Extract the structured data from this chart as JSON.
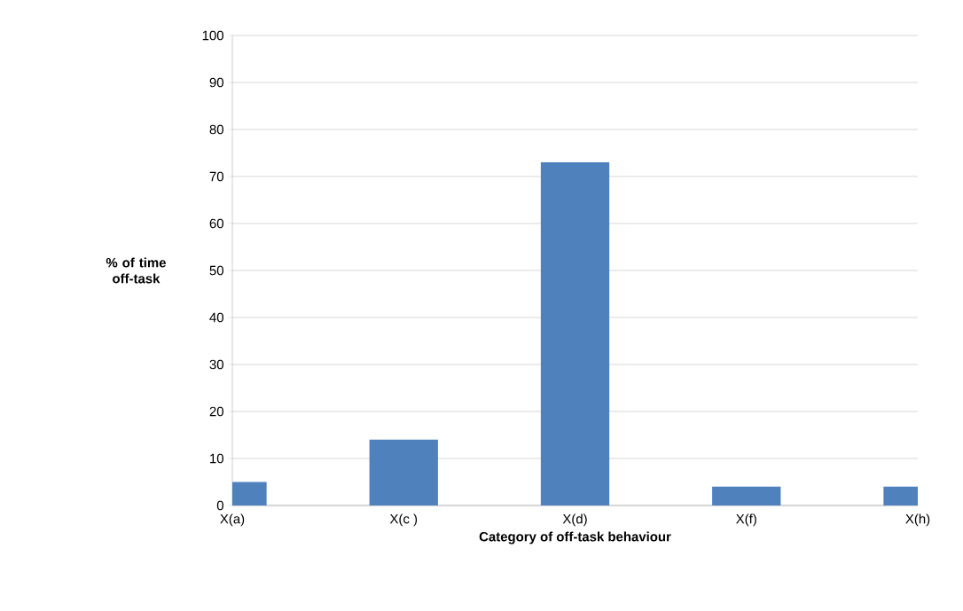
{
  "chart_data": {
    "type": "bar",
    "xlabel": "Category of off-task behaviour",
    "ylabel": "% of time off-task",
    "categories": [
      "X(a)",
      "X(c )",
      "X(d)",
      "X(f)",
      "X(h)"
    ],
    "values": [
      5,
      14,
      73,
      4,
      4
    ],
    "color": "#4f81bd",
    "ylim": [
      0,
      100
    ],
    "yticks": [
      0,
      10,
      20,
      30,
      40,
      50,
      60,
      70,
      80,
      90,
      100
    ],
    "grid": "y"
  }
}
